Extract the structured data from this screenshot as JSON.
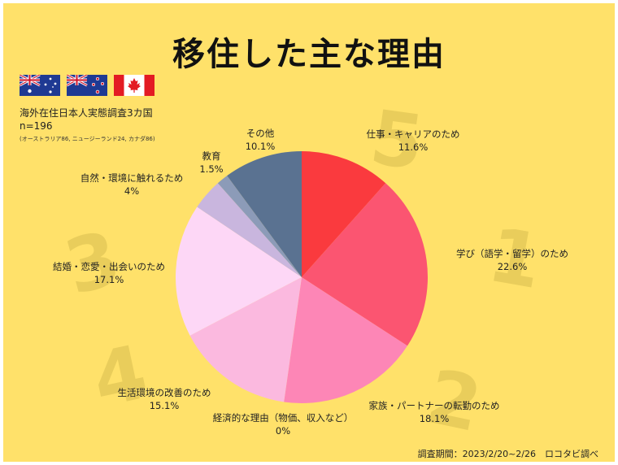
{
  "title": "移住した主な理由",
  "survey": {
    "name": "海外在住日本人実態調査3カ国",
    "n": "n=196",
    "breakdown": "(オーストラリア86, ニュージーランド24, カナダ86)"
  },
  "flags": [
    {
      "country": "australia",
      "colors": {
        "field": "#1f3a93",
        "red": "#cf142b",
        "white": "#ffffff"
      }
    },
    {
      "country": "new-zealand",
      "colors": {
        "field": "#1f3a93",
        "red": "#cf142b",
        "white": "#ffffff"
      }
    },
    {
      "country": "canada",
      "colors": {
        "red": "#e31b23",
        "white": "#ffffff"
      }
    }
  ],
  "footer": "調査期間：2023/2/20~2/26　ロコタビ調べ",
  "chart_data": {
    "type": "pie",
    "title": "移住した主な理由",
    "slices": [
      {
        "label": "仕事・キャリアのため",
        "value": 11.6,
        "value_label": "11.6%",
        "color": "#fa3a3e"
      },
      {
        "label": "学び（語学・留学）のため",
        "value": 22.6,
        "value_label": "22.6%",
        "color": "#fb5571"
      },
      {
        "label": "家族・パートナーの転勤のため",
        "value": 18.1,
        "value_label": "18.1%",
        "color": "#fd86b6"
      },
      {
        "label": "経済的な理由（物価、収入など）",
        "value": 0,
        "value_label": "0%",
        "color": "#fdaed6"
      },
      {
        "label": "生活環境の改善のため",
        "value": 15.1,
        "value_label": "15.1%",
        "color": "#fbb9df"
      },
      {
        "label": "結婚・恋愛・出会いのため",
        "value": 17.1,
        "value_label": "17.1%",
        "color": "#fdd7f6"
      },
      {
        "label": "自然・環境に触れるため",
        "value": 4,
        "value_label": "4%",
        "color": "#c9b6de"
      },
      {
        "label": "教育",
        "value": 1.5,
        "value_label": "1.5%",
        "color": "#8c9bb8"
      },
      {
        "label": "その他",
        "value": 10.1,
        "value_label": "10.1%",
        "color": "#5a7291"
      }
    ],
    "rank_markers": [
      "1",
      "2",
      "3",
      "4",
      "5"
    ],
    "legend": "none"
  }
}
